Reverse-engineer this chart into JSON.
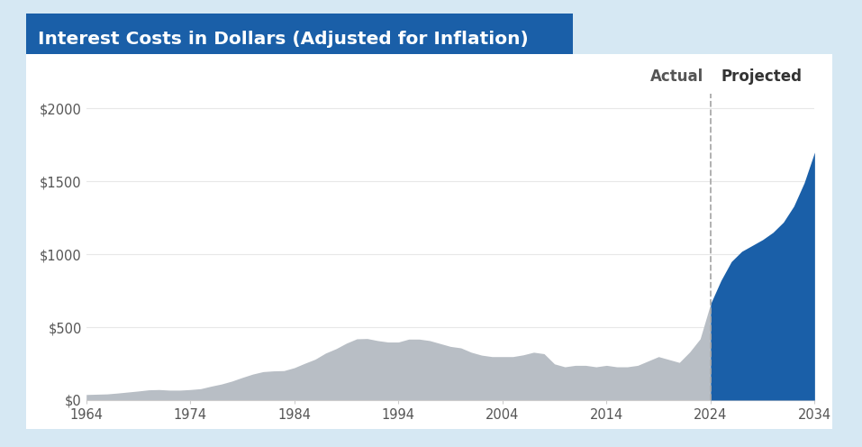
{
  "title": "Interest Costs in Dollars (Adjusted for Inflation)",
  "title_bg_color": "#1a5fa8",
  "title_text_color": "#ffffff",
  "bg_color": "#d6e8f3",
  "plot_bg_color": "#ffffff",
  "actual_color": "#b8bec5",
  "projected_color": "#1a5fa8",
  "divider_year": 2024,
  "x_start": 1964,
  "x_end": 2034,
  "xticks": [
    1964,
    1974,
    1984,
    1994,
    2004,
    2014,
    2024,
    2034
  ],
  "yticks": [
    0,
    500,
    1000,
    1500,
    2000
  ],
  "ylim": [
    0,
    2100
  ],
  "ylabel_fmt": [
    "$0",
    "$500",
    "$1000",
    "$1500",
    "$2000"
  ],
  "actual_years": [
    1964,
    1965,
    1966,
    1967,
    1968,
    1969,
    1970,
    1971,
    1972,
    1973,
    1974,
    1975,
    1976,
    1977,
    1978,
    1979,
    1980,
    1981,
    1982,
    1983,
    1984,
    1985,
    1986,
    1987,
    1988,
    1989,
    1990,
    1991,
    1992,
    1993,
    1994,
    1995,
    1996,
    1997,
    1998,
    1999,
    2000,
    2001,
    2002,
    2003,
    2004,
    2005,
    2006,
    2007,
    2008,
    2009,
    2010,
    2011,
    2012,
    2013,
    2014,
    2015,
    2016,
    2017,
    2018,
    2019,
    2020,
    2021,
    2022,
    2023,
    2024
  ],
  "actual_values": [
    38,
    40,
    42,
    48,
    55,
    62,
    70,
    72,
    68,
    68,
    72,
    78,
    95,
    110,
    130,
    155,
    178,
    195,
    200,
    202,
    222,
    252,
    280,
    322,
    352,
    390,
    420,
    422,
    408,
    398,
    398,
    418,
    418,
    408,
    388,
    368,
    358,
    328,
    308,
    298,
    298,
    298,
    310,
    328,
    318,
    248,
    228,
    238,
    238,
    228,
    238,
    228,
    228,
    238,
    268,
    298,
    278,
    258,
    330,
    420,
    660
  ],
  "projected_years": [
    2024,
    2025,
    2026,
    2027,
    2028,
    2029,
    2030,
    2031,
    2032,
    2033,
    2034
  ],
  "projected_values": [
    660,
    820,
    950,
    1020,
    1060,
    1100,
    1150,
    1220,
    1330,
    1490,
    1700
  ],
  "label_actual": "Actual",
  "label_projected": "Projected",
  "label_fontsize": 12,
  "tick_fontsize": 10.5,
  "actual_label_color": "#555555",
  "projected_label_color": "#333333",
  "grid_color": "#e8e8e8",
  "spine_color": "#cccccc",
  "dashed_line_color": "#aaaaaa"
}
